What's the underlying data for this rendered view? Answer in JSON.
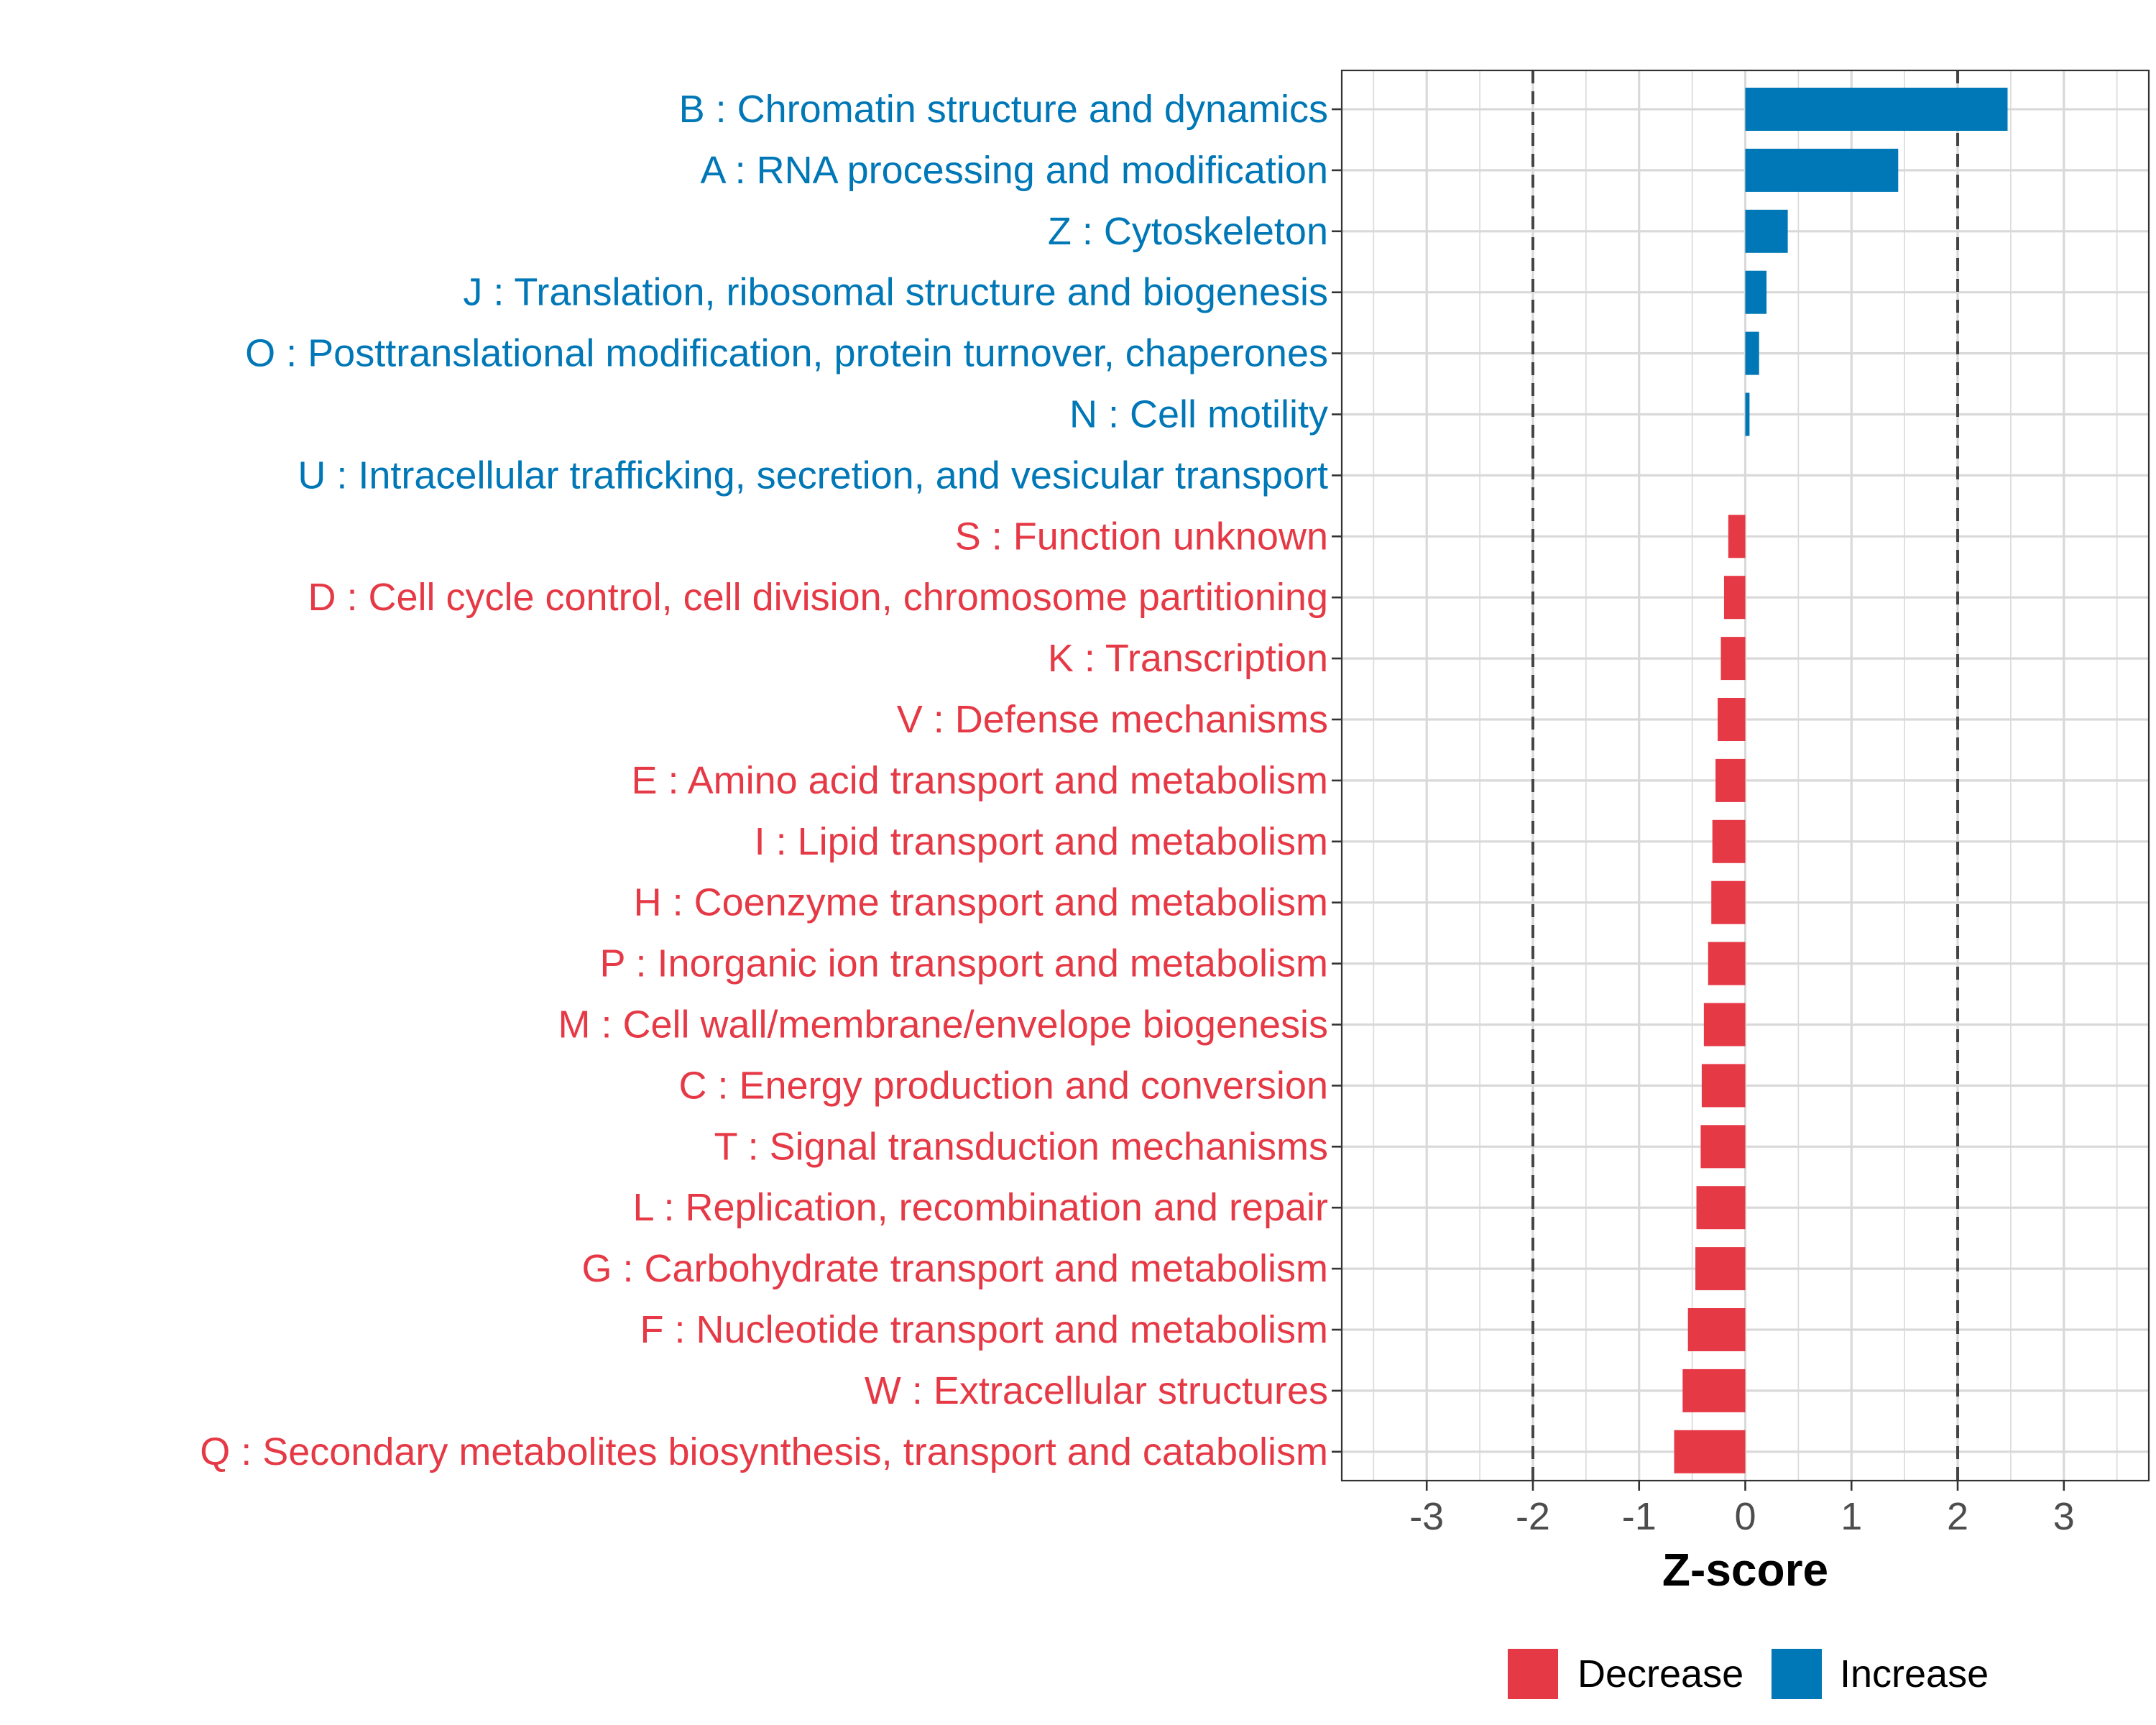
{
  "chart_data": {
    "type": "bar",
    "orientation": "horizontal",
    "title": "",
    "xlabel": "Z-score",
    "ylabel": "",
    "xlim": [
      -3.8,
      3.8
    ],
    "x_ticks": [
      -3,
      -2,
      -1,
      0,
      1,
      2,
      3
    ],
    "x_tick_labels": [
      "-3",
      "-2",
      "-1",
      "0",
      "1",
      "2",
      "3"
    ],
    "threshold_lines": [
      -2,
      2
    ],
    "grid": true,
    "legend_position": "bottom",
    "colors": {
      "Decrease": "#E63946",
      "Increase": "#0077B6"
    },
    "categories": [
      "B : Chromatin structure and dynamics",
      "A : RNA processing and modification",
      "Z : Cytoskeleton",
      "J : Translation, ribosomal structure and biogenesis",
      "O : Posttranslational modification, protein turnover, chaperones",
      "N : Cell motility",
      "U : Intracellular trafficking, secretion, and vesicular transport",
      "S : Function unknown",
      "D : Cell cycle control, cell division, chromosome partitioning",
      "K : Transcription",
      "V : Defense mechanisms",
      "E : Amino acid transport and metabolism",
      "I : Lipid transport and metabolism",
      "H : Coenzyme transport and metabolism",
      "P : Inorganic ion transport and metabolism",
      "M : Cell wall/membrane/envelope biogenesis",
      "C : Energy production and conversion",
      "T : Signal transduction mechanisms",
      "L : Replication, recombination and repair",
      "G : Carbohydrate transport and metabolism",
      "F : Nucleotide transport and metabolism",
      "W : Extracellular structures",
      "Q : Secondary metabolites biosynthesis, transport and catabolism"
    ],
    "values": [
      2.47,
      1.44,
      0.4,
      0.2,
      0.13,
      0.04,
      0.0,
      -0.16,
      -0.2,
      -0.23,
      -0.26,
      -0.28,
      -0.31,
      -0.32,
      -0.35,
      -0.39,
      -0.41,
      -0.42,
      -0.46,
      -0.47,
      -0.54,
      -0.59,
      -0.67
    ],
    "groups": [
      "Increase",
      "Increase",
      "Increase",
      "Increase",
      "Increase",
      "Increase",
      "Increase",
      "Decrease",
      "Decrease",
      "Decrease",
      "Decrease",
      "Decrease",
      "Decrease",
      "Decrease",
      "Decrease",
      "Decrease",
      "Decrease",
      "Decrease",
      "Decrease",
      "Decrease",
      "Decrease",
      "Decrease",
      "Decrease"
    ],
    "legend": [
      "Decrease",
      "Increase"
    ]
  }
}
